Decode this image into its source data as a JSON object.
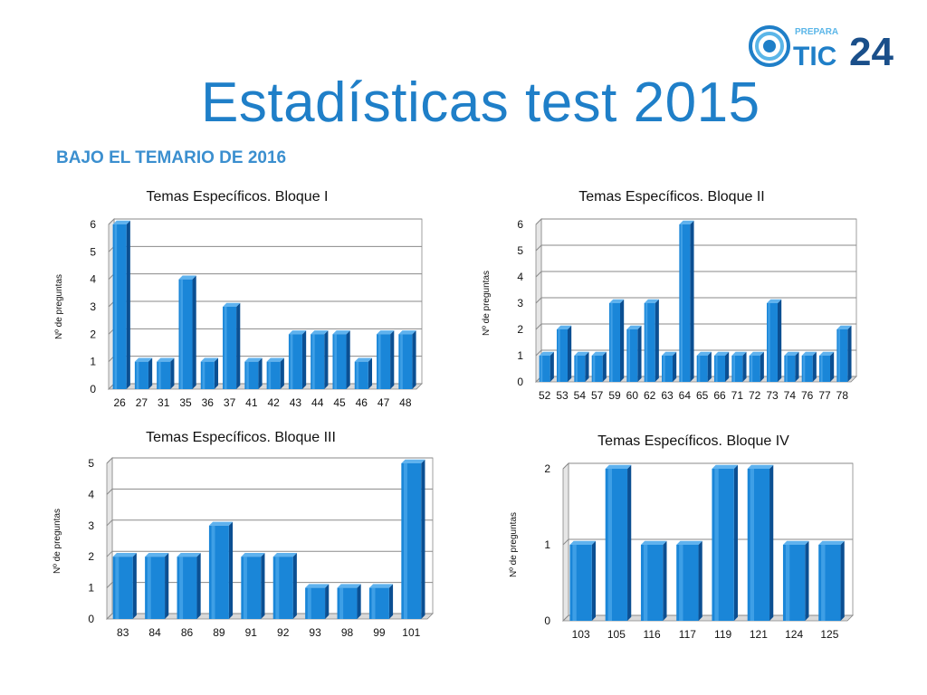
{
  "slide": {
    "title": "Estadísticas test 2015",
    "subtitle": "BAJO EL TEMARIO DE 2016",
    "logo": {
      "top_text": "PREPARA",
      "main_text": "TIC",
      "number": "24",
      "icon": "target-icon",
      "color_blue": "#1f7fc8",
      "color_dark": "#1a4f8a"
    }
  },
  "chart_data": [
    {
      "type": "bar",
      "title": "Temas Específicos. Bloque I",
      "ylabel": "Nº de preguntas",
      "categories": [
        "26",
        "27",
        "31",
        "35",
        "36",
        "37",
        "41",
        "42",
        "43",
        "44",
        "45",
        "46",
        "47",
        "48"
      ],
      "values": [
        6,
        1,
        1,
        4,
        1,
        3,
        1,
        1,
        2,
        2,
        2,
        1,
        2,
        2
      ],
      "ylim": [
        0,
        6
      ],
      "yticks": [
        0,
        1,
        2,
        3,
        4,
        5,
        6
      ],
      "grid": true,
      "color": "#1a86d8"
    },
    {
      "type": "bar",
      "title": "Temas Específicos. Bloque II",
      "ylabel": "Nº de preguntas",
      "categories": [
        "52",
        "53",
        "54",
        "57",
        "59",
        "60",
        "62",
        "63",
        "64",
        "65",
        "66",
        "71",
        "72",
        "73",
        "74",
        "76",
        "77",
        "78"
      ],
      "values": [
        1,
        2,
        1,
        1,
        3,
        2,
        3,
        1,
        6,
        1,
        1,
        1,
        1,
        3,
        1,
        1,
        1,
        2
      ],
      "ylim": [
        0,
        6
      ],
      "yticks": [
        0,
        1,
        2,
        3,
        4,
        5,
        6
      ],
      "grid": true,
      "color": "#1a86d8"
    },
    {
      "type": "bar",
      "title": "Temas Específicos. Bloque III",
      "ylabel": "Nº de preguntas",
      "categories": [
        "83",
        "84",
        "86",
        "89",
        "91",
        "92",
        "93",
        "98",
        "99",
        "101"
      ],
      "values": [
        2,
        2,
        2,
        3,
        2,
        2,
        1,
        1,
        1,
        5
      ],
      "ylim": [
        0,
        5
      ],
      "yticks": [
        0,
        1,
        2,
        3,
        4,
        5
      ],
      "grid": true,
      "color": "#1a86d8"
    },
    {
      "type": "bar",
      "title": "Temas Específicos. Bloque IV",
      "ylabel": "Nº de preguntas",
      "categories": [
        "103",
        "105",
        "116",
        "117",
        "119",
        "121",
        "124",
        "125"
      ],
      "values": [
        1,
        2,
        1,
        1,
        2,
        2,
        1,
        1
      ],
      "ylim": [
        0,
        2
      ],
      "yticks": [
        0,
        1,
        2
      ],
      "grid": true,
      "color": "#1a86d8"
    }
  ]
}
